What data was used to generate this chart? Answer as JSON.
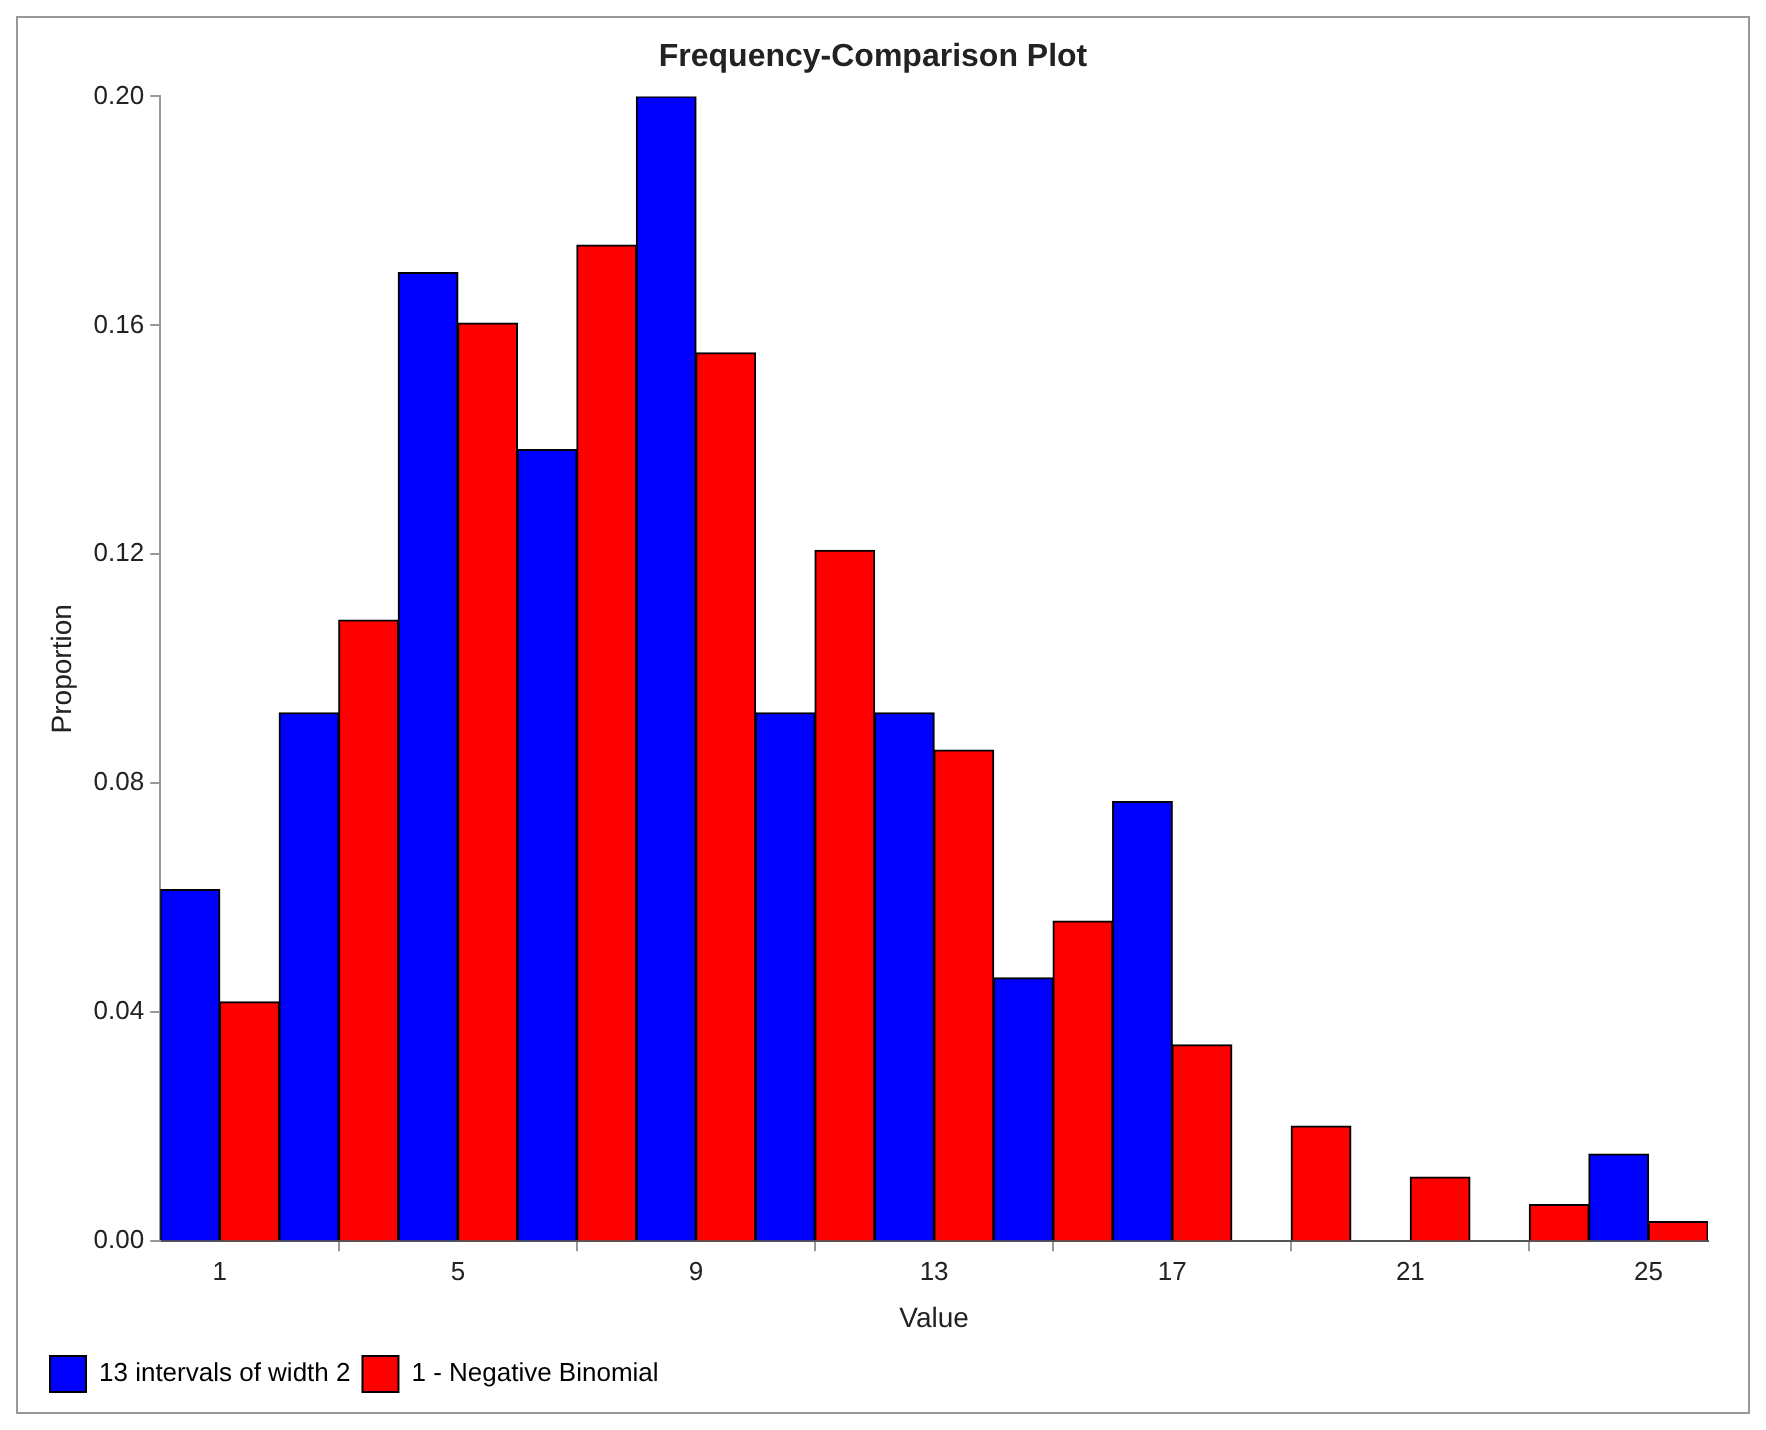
{
  "chart_data": {
    "type": "bar",
    "title": "Frequency-Comparison Plot",
    "xlabel": "Value",
    "ylabel": "Proportion",
    "x": [
      1,
      3,
      5,
      7,
      9,
      11,
      13,
      15,
      17,
      19,
      21,
      23,
      25
    ],
    "series": [
      {
        "name": "13 intervals of width 2",
        "color": "#0000ff",
        "values": [
          0.0614,
          0.0923,
          0.1692,
          0.1383,
          0.2,
          0.0923,
          0.0923,
          0.046,
          0.0768,
          0,
          0,
          0,
          0.0152
        ]
      },
      {
        "name": "1 - Negative Binomial",
        "color": "#ff0000",
        "values": [
          0.0418,
          0.1085,
          0.1604,
          0.174,
          0.1552,
          0.1207,
          0.0858,
          0.0559,
          0.0343,
          0.0201,
          0.0112,
          0.0064,
          0.0034
        ]
      }
    ],
    "xlim": [
      0,
      26
    ],
    "xticks": [
      1,
      5,
      9,
      13,
      17,
      21,
      25
    ],
    "ylim": [
      0,
      0.2
    ],
    "yticks": [
      {
        "value": 0,
        "label": "0.00"
      },
      {
        "value": 0.04,
        "label": "0.04"
      },
      {
        "value": 0.08,
        "label": "0.08"
      },
      {
        "value": 0.12,
        "label": "0.12"
      },
      {
        "value": 0.16,
        "label": "0.16"
      },
      {
        "value": 0.2,
        "label": "0.20"
      }
    ],
    "grid": false,
    "legend": "bottom"
  }
}
